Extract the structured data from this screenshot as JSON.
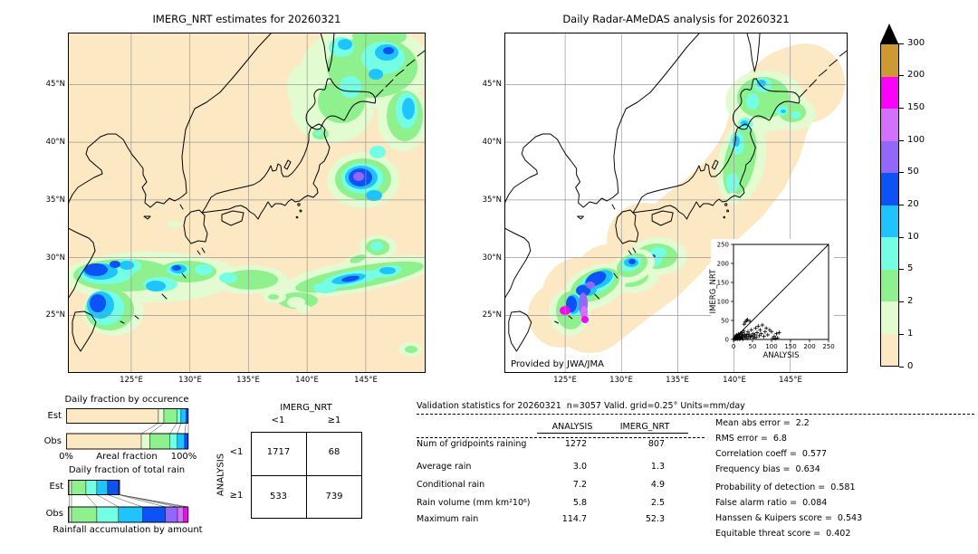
{
  "panels": {
    "left": {
      "title": "IMERG_NRT estimates for 20260321"
    },
    "right": {
      "title": "Daily Radar-AMeDAS analysis for 20260321",
      "credit": "Provided by JWA/JMA"
    }
  },
  "geo_ticks": {
    "lat": [
      "45°N",
      "40°N",
      "35°N",
      "30°N",
      "25°N"
    ],
    "lon": [
      "125°E",
      "130°E",
      "135°E",
      "140°E",
      "145°E"
    ]
  },
  "chart_data": {
    "maps": {
      "type": "heatmap",
      "units": "mm/day",
      "left_title": "IMERG_NRT estimates for 20260321",
      "right_title": "Daily Radar-AMeDAS analysis for 20260321",
      "lat_range": [
        "25°N",
        "45°N"
      ],
      "lon_range": [
        "125°E",
        "145°E"
      ]
    },
    "colorbar": {
      "type": "scale",
      "labels_low_to_high": [
        "0",
        "1",
        "2",
        "5",
        "10",
        "20",
        "50",
        "100",
        "150",
        "200",
        "300"
      ],
      "colors_low_to_high": [
        "#FCE8C2",
        "#E2FBD1",
        "#8EF18E",
        "#74FFE5",
        "#1FC4FF",
        "#0D52F5",
        "#9467FB",
        "#D370FC",
        "#FB02FB",
        "#CE9832"
      ],
      "overflow_color": "#000000"
    },
    "occurrence": {
      "type": "bar",
      "title": "Daily fraction by occurence",
      "xlabel": "Areal fraction",
      "x_min_label": "0%",
      "x_max_label": "100%",
      "rows": [
        "Est",
        "Obs"
      ],
      "est_pct": [
        75.5,
        4.5,
        10.5,
        3.5,
        4,
        2
      ],
      "obs_pct": [
        61.5,
        7,
        16.5,
        6,
        6,
        3
      ]
    },
    "total_rain": {
      "type": "bar",
      "title": "Daily fraction of total rain",
      "caption": "Rainfall accumulation by amount",
      "rows": [
        "Est",
        "Obs"
      ],
      "est_pct": [
        1,
        2,
        12,
        9,
        9,
        9,
        1
      ],
      "obs_pct": [
        1,
        2,
        21,
        18,
        20,
        19,
        10,
        5,
        4
      ]
    },
    "contingency": {
      "type": "table",
      "col_title": "IMERG_NRT",
      "row_title": "ANALYSIS",
      "col_labels": [
        "<1",
        "≥1"
      ],
      "row_labels": [
        "<1",
        "≥1"
      ],
      "values": [
        [
          1717,
          68
        ],
        [
          533,
          739
        ]
      ]
    },
    "validation": {
      "type": "table",
      "title": "Validation statistics for 20260321  n=3057 Valid. grid=0.25° Units=mm/day",
      "columns": [
        "ANALYSIS",
        "IMERG_NRT"
      ],
      "rows": [
        {
          "label": "Num of gridpoints raining",
          "analysis": "1272",
          "imerg": "807"
        },
        {
          "label": "Average rain",
          "analysis": "3.0",
          "imerg": "1.3"
        },
        {
          "label": "Conditional rain",
          "analysis": "7.2",
          "imerg": "4.9"
        },
        {
          "label": "Rain volume (mm km²10⁶)",
          "analysis": "5.8",
          "imerg": "2.5"
        },
        {
          "label": "Maximum rain",
          "analysis": "114.7",
          "imerg": "52.3"
        }
      ],
      "scores": [
        {
          "label": "Mean abs error",
          "value": "2.2"
        },
        {
          "label": "RMS error",
          "value": "6.8"
        },
        {
          "label": "Correlation coeff",
          "value": "0.577"
        },
        {
          "label": "Frequency bias",
          "value": "0.634"
        },
        {
          "label": "Probability of detection",
          "value": "0.581"
        },
        {
          "label": "False alarm ratio",
          "value": "0.084"
        },
        {
          "label": "Hanssen & Kuipers score",
          "value": "0.543"
        },
        {
          "label": "Equitable threat score",
          "value": "0.402"
        }
      ]
    },
    "scatter": {
      "type": "scatter",
      "xlabel": "ANALYSIS",
      "ylabel": "IMERG_NRT",
      "ticks": [
        "0",
        "50",
        "100",
        "150",
        "200",
        "250"
      ],
      "xlim": [
        0,
        250
      ],
      "ylim": [
        0,
        250
      ],
      "points": [
        [
          2,
          1
        ],
        [
          3,
          4
        ],
        [
          4,
          2
        ],
        [
          5,
          7
        ],
        [
          5,
          1
        ],
        [
          6,
          3
        ],
        [
          7,
          10
        ],
        [
          8,
          2
        ],
        [
          8,
          6
        ],
        [
          9,
          12
        ],
        [
          10,
          4
        ],
        [
          10,
          9
        ],
        [
          11,
          1
        ],
        [
          12,
          6
        ],
        [
          13,
          14
        ],
        [
          14,
          3
        ],
        [
          15,
          8
        ],
        [
          15,
          1
        ],
        [
          16,
          12
        ],
        [
          17,
          5
        ],
        [
          18,
          2
        ],
        [
          18,
          16
        ],
        [
          20,
          7
        ],
        [
          21,
          12
        ],
        [
          22,
          3
        ],
        [
          23,
          18
        ],
        [
          24,
          6
        ],
        [
          25,
          1
        ],
        [
          26,
          10
        ],
        [
          27,
          22
        ],
        [
          28,
          40
        ],
        [
          29,
          14
        ],
        [
          30,
          6
        ],
        [
          31,
          46
        ],
        [
          33,
          8
        ],
        [
          34,
          50
        ],
        [
          35,
          12
        ],
        [
          36,
          3
        ],
        [
          37,
          52
        ],
        [
          38,
          20
        ],
        [
          40,
          8
        ],
        [
          41,
          14
        ],
        [
          43,
          48
        ],
        [
          44,
          5
        ],
        [
          46,
          10
        ],
        [
          47,
          25
        ],
        [
          50,
          8
        ],
        [
          52,
          15
        ],
        [
          54,
          4
        ],
        [
          56,
          12
        ],
        [
          58,
          30
        ],
        [
          60,
          6
        ],
        [
          62,
          18
        ],
        [
          65,
          35
        ],
        [
          68,
          10
        ],
        [
          70,
          25
        ],
        [
          73,
          15
        ],
        [
          76,
          38
        ],
        [
          80,
          8
        ],
        [
          83,
          20
        ],
        [
          86,
          30
        ],
        [
          90,
          12
        ],
        [
          95,
          25
        ],
        [
          100,
          20
        ],
        [
          103,
          3
        ],
        [
          107,
          8
        ],
        [
          110,
          2
        ],
        [
          113,
          15
        ],
        [
          116,
          4
        ],
        [
          120,
          18
        ]
      ]
    }
  }
}
